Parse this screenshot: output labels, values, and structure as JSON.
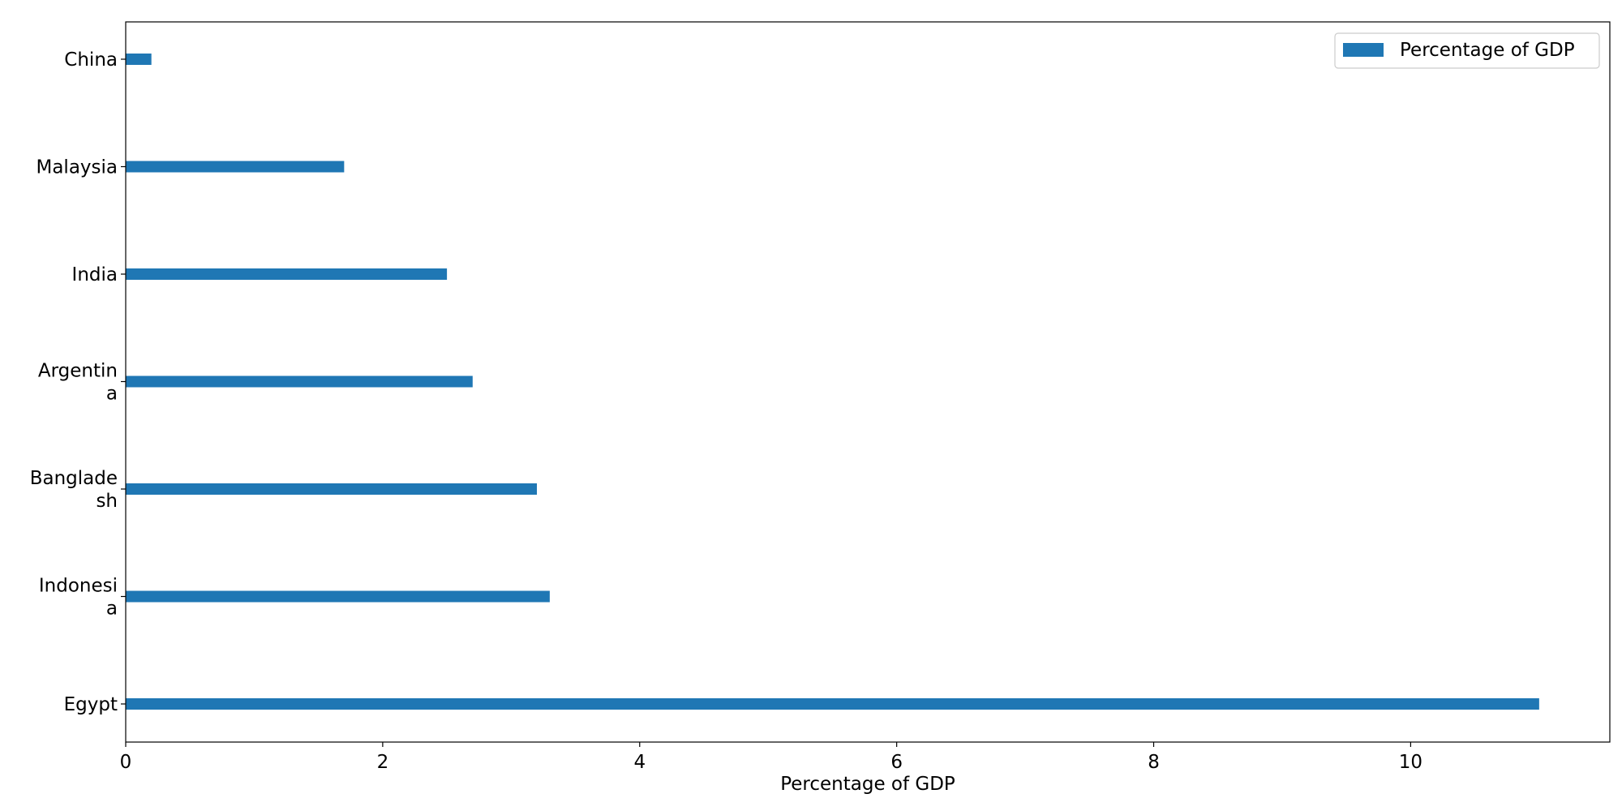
{
  "chart_data": {
    "type": "bar",
    "orientation": "horizontal",
    "categories": [
      "Egypt",
      "Indonesia",
      "Bangladesh",
      "Argentina",
      "India",
      "Malaysia",
      "China"
    ],
    "category_labels": [
      [
        "Egypt"
      ],
      [
        "Indonesi",
        "a"
      ],
      [
        "Banglade",
        "sh"
      ],
      [
        "Argentin",
        "a"
      ],
      [
        "India"
      ],
      [
        "Malaysia"
      ],
      [
        "China"
      ]
    ],
    "series": [
      {
        "name": "Percentage of GDP",
        "values": [
          11.0,
          3.3,
          3.2,
          2.7,
          2.5,
          1.7,
          0.2
        ],
        "color": "#1f77b4"
      }
    ],
    "title": "",
    "xlabel": "Percentage of GDP",
    "ylabel": "",
    "xlim": [
      0,
      11.55
    ],
    "xticks": [
      0,
      2,
      4,
      6,
      8,
      10
    ],
    "grid": false,
    "legend": {
      "placement": "top-right",
      "entries": [
        "Percentage of GDP"
      ]
    }
  }
}
